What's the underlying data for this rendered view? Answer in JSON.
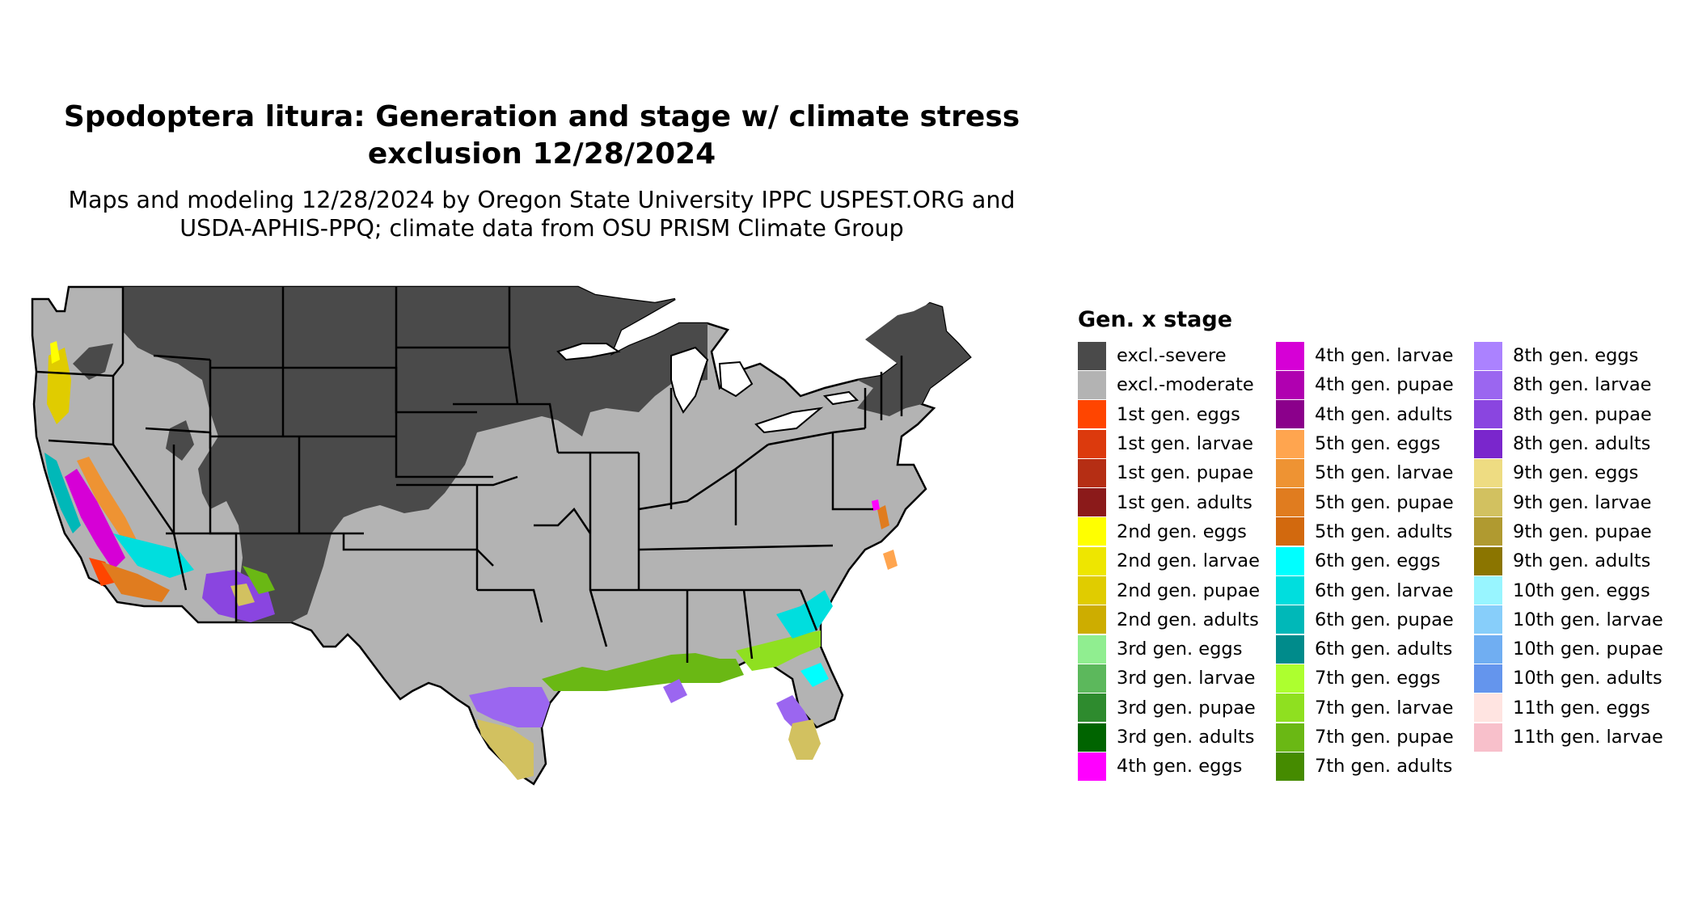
{
  "title_line1": "Spodoptera litura: Generation and stage w/ climate stress",
  "title_line2": "exclusion 12/28/2024",
  "subtitle_line1": "Maps and modeling 12/28/2024 by Oregon State University IPPC USPEST.ORG and",
  "subtitle_line2": "USDA-APHIS-PPQ; climate data from OSU PRISM Climate Group",
  "legend": {
    "title": "Gen. x stage",
    "items": [
      {
        "label": "excl.-severe",
        "color": "#4a4a4a"
      },
      {
        "label": "excl.-moderate",
        "color": "#b3b3b3"
      },
      {
        "label": "1st gen. eggs",
        "color": "#ff4500"
      },
      {
        "label": "1st gen. larvae",
        "color": "#dc3a0d"
      },
      {
        "label": "1st gen. pupae",
        "color": "#b52e14"
      },
      {
        "label": "1st gen. adults",
        "color": "#8b1a1a"
      },
      {
        "label": "2nd gen. eggs",
        "color": "#ffff00"
      },
      {
        "label": "2nd gen. larvae",
        "color": "#eee600"
      },
      {
        "label": "2nd gen. pupae",
        "color": "#e0cc00"
      },
      {
        "label": "2nd gen. adults",
        "color": "#cdad00"
      },
      {
        "label": "3rd gen. eggs",
        "color": "#90ee90"
      },
      {
        "label": "3rd gen. larvae",
        "color": "#5cb85c"
      },
      {
        "label": "3rd gen. pupae",
        "color": "#2e8b2e"
      },
      {
        "label": "3rd gen. adults",
        "color": "#006400"
      },
      {
        "label": "4th gen. eggs",
        "color": "#ff00ff"
      },
      {
        "label": "4th gen. larvae",
        "color": "#d600d6"
      },
      {
        "label": "4th gen. pupae",
        "color": "#b000b0"
      },
      {
        "label": "4th gen. adults",
        "color": "#8b008b"
      },
      {
        "label": "5th gen. eggs",
        "color": "#ffa54f"
      },
      {
        "label": "5th gen. larvae",
        "color": "#ee9333"
      },
      {
        "label": "5th gen. pupae",
        "color": "#e07c1f"
      },
      {
        "label": "5th gen. adults",
        "color": "#d2690e"
      },
      {
        "label": "6th gen. eggs",
        "color": "#00ffff"
      },
      {
        "label": "6th gen. larvae",
        "color": "#00dede"
      },
      {
        "label": "6th gen. pupae",
        "color": "#00b8b8"
      },
      {
        "label": "6th gen. adults",
        "color": "#008b8b"
      },
      {
        "label": "7th gen. eggs",
        "color": "#adff2f"
      },
      {
        "label": "7th gen. larvae",
        "color": "#8fe020"
      },
      {
        "label": "7th gen. pupae",
        "color": "#6ab814"
      },
      {
        "label": "7th gen. adults",
        "color": "#458b00"
      },
      {
        "label": "8th gen. eggs",
        "color": "#ab82ff"
      },
      {
        "label": "8th gen. larvae",
        "color": "#9b66f0"
      },
      {
        "label": "8th gen. pupae",
        "color": "#8a45e0"
      },
      {
        "label": "8th gen. adults",
        "color": "#7a26cc"
      },
      {
        "label": "9th gen. eggs",
        "color": "#eedc82"
      },
      {
        "label": "9th gen. larvae",
        "color": "#d2c160"
      },
      {
        "label": "9th gen. pupae",
        "color": "#b09a30"
      },
      {
        "label": "9th gen. adults",
        "color": "#8b7500"
      },
      {
        "label": "10th gen. eggs",
        "color": "#98f5ff"
      },
      {
        "label": "10th gen. larvae",
        "color": "#87cefa"
      },
      {
        "label": "10th gen. pupae",
        "color": "#70aef2"
      },
      {
        "label": "10th gen. adults",
        "color": "#6495ed"
      },
      {
        "label": "11th gen. eggs",
        "color": "#ffe4e1"
      },
      {
        "label": "11th gen. larvae",
        "color": "#f8c0cb"
      }
    ]
  },
  "map_colors": {
    "severe": "#4a4a4a",
    "moderate": "#b3b3b3",
    "border": "#000000"
  }
}
